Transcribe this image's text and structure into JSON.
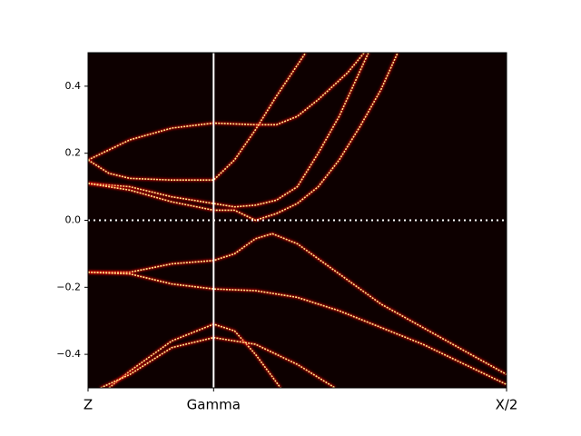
{
  "chart_data": {
    "type": "line",
    "background": "#0d0000",
    "color": "#ffe98a",
    "glow": "#e00000",
    "ref_color": "#ffffff",
    "xlim": [
      0,
      1
    ],
    "ylim": [
      -0.5,
      0.5
    ],
    "xticks": [
      {
        "value": 0,
        "label": "Z"
      },
      {
        "value": 0.3,
        "label": "Gamma"
      },
      {
        "value": 1,
        "label": "X/2"
      }
    ],
    "yticks": [
      {
        "value": -0.4,
        "label": "−0.4"
      },
      {
        "value": -0.2,
        "label": "−0.2"
      },
      {
        "value": 0,
        "label": "0.0"
      },
      0.2,
      0.4
    ],
    "vlines": [
      0.3
    ],
    "hlines": [
      0
    ],
    "series": [
      {
        "x": [
          0,
          0.1,
          0.2,
          0.3,
          0.4,
          0.45,
          0.5,
          0.55,
          0.62,
          0.66
        ],
        "values": [
          0.18,
          0.24,
          0.275,
          0.29,
          0.285,
          0.285,
          0.31,
          0.36,
          0.44,
          0.5
        ]
      },
      {
        "x": [
          0,
          0.05,
          0.1,
          0.2,
          0.3,
          0.35,
          0.4,
          0.45,
          0.52
        ],
        "values": [
          0.18,
          0.14,
          0.125,
          0.12,
          0.12,
          0.18,
          0.27,
          0.37,
          0.5
        ]
      },
      {
        "x": [
          0,
          0.1,
          0.2,
          0.3,
          0.35,
          0.4,
          0.45,
          0.5,
          0.55,
          0.6,
          0.67
        ],
        "values": [
          0.11,
          0.1,
          0.07,
          0.05,
          0.04,
          0.045,
          0.06,
          0.1,
          0.2,
          0.31,
          0.5
        ]
      },
      {
        "x": [
          0,
          0.1,
          0.2,
          0.3,
          0.35,
          0.4,
          0.45,
          0.5,
          0.55,
          0.6,
          0.65,
          0.7,
          0.74
        ],
        "values": [
          0.11,
          0.09,
          0.055,
          0.03,
          0.03,
          0,
          0.02,
          0.05,
          0.1,
          0.18,
          0.28,
          0.39,
          0.5
        ]
      },
      {
        "x": [
          0,
          0.1,
          0.2,
          0.3,
          0.35,
          0.4,
          0.44,
          0.5,
          0.6,
          0.7,
          0.8,
          0.9,
          1
        ],
        "values": [
          -0.155,
          -0.155,
          -0.13,
          -0.12,
          -0.1,
          -0.055,
          -0.04,
          -0.07,
          -0.16,
          -0.25,
          -0.32,
          -0.39,
          -0.46
        ]
      },
      {
        "x": [
          0,
          0.1,
          0.2,
          0.3,
          0.4,
          0.5,
          0.6,
          0.7,
          0.8,
          0.9,
          1
        ],
        "values": [
          -0.155,
          -0.16,
          -0.19,
          -0.205,
          -0.21,
          -0.23,
          -0.27,
          -0.32,
          -0.37,
          -0.43,
          -0.49
        ]
      },
      {
        "x": [
          0.05,
          0.1,
          0.2,
          0.3,
          0.35,
          0.4,
          0.46
        ],
        "values": [
          -0.5,
          -0.45,
          -0.36,
          -0.31,
          -0.33,
          -0.4,
          -0.5
        ]
      },
      {
        "x": [
          0.03,
          0.1,
          0.2,
          0.3,
          0.4,
          0.5,
          0.59
        ],
        "values": [
          -0.5,
          -0.46,
          -0.38,
          -0.35,
          -0.37,
          -0.43,
          -0.5
        ]
      }
    ]
  }
}
